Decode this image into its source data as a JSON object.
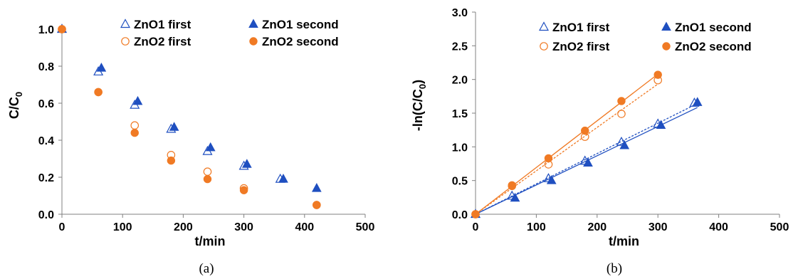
{
  "colors": {
    "blue": "#1f4fc0",
    "orange": "#f07a24",
    "axis": "#808080"
  },
  "chart_data": [
    {
      "type": "scatter",
      "panel_label": "(a)",
      "xlabel": "t/min",
      "ylabel": "C/C",
      "ylabel_sub": "0",
      "xlim": [
        0,
        500
      ],
      "ylim": [
        0,
        1.0
      ],
      "xticks": [
        "0",
        "100",
        "200",
        "300",
        "400",
        "500"
      ],
      "yticks": [
        "0.0",
        "0.2",
        "0.4",
        "0.6",
        "0.8",
        "1.0"
      ],
      "legend": [
        "ZnO1 first",
        "ZnO1 second",
        "ZnO2 first",
        "ZnO2 second"
      ],
      "series": [
        {
          "name": "ZnO1 first",
          "marker": "triangle-open",
          "color": "blue",
          "x": [
            0,
            60,
            120,
            180,
            240,
            300,
            360
          ],
          "y": [
            1.0,
            0.77,
            0.59,
            0.46,
            0.34,
            0.26,
            0.19
          ]
        },
        {
          "name": "ZnO1 second",
          "marker": "triangle-filled",
          "color": "blue",
          "x": [
            0,
            65,
            125,
            185,
            245,
            305,
            365,
            420
          ],
          "y": [
            1.0,
            0.79,
            0.61,
            0.47,
            0.36,
            0.27,
            0.19,
            0.14
          ]
        },
        {
          "name": "ZnO2 first",
          "marker": "circle-open",
          "color": "orange",
          "x": [
            0,
            60,
            120,
            180,
            240,
            300,
            420
          ],
          "y": [
            1.0,
            0.66,
            0.48,
            0.32,
            0.23,
            0.14,
            0.05
          ]
        },
        {
          "name": "ZnO2 second",
          "marker": "circle-filled",
          "color": "orange",
          "x": [
            0,
            60,
            120,
            180,
            240,
            300,
            420
          ],
          "y": [
            1.0,
            0.66,
            0.44,
            0.29,
            0.19,
            0.13,
            0.05
          ]
        }
      ]
    },
    {
      "type": "scatter",
      "panel_label": "(b)",
      "xlabel": "t/min",
      "ylabel": "-ln(C/C",
      "ylabel_sub": "0",
      "ylabel_end": ")",
      "xlim": [
        0,
        500
      ],
      "ylim": [
        0,
        3.0
      ],
      "xticks": [
        "0",
        "100",
        "200",
        "300",
        "400",
        "500"
      ],
      "yticks": [
        "0.0",
        "0.5",
        "1.0",
        "1.5",
        "2.0",
        "2.5",
        "3.0"
      ],
      "legend": [
        "ZnO1 first",
        "ZnO1 second",
        "ZnO2 first",
        "ZnO2 second"
      ],
      "series": [
        {
          "name": "ZnO1 first",
          "marker": "triangle-open",
          "color": "blue",
          "fit": "dashed",
          "x": [
            0,
            60,
            120,
            180,
            240,
            300,
            360
          ],
          "y": [
            0,
            0.27,
            0.53,
            0.79,
            1.07,
            1.34,
            1.65
          ]
        },
        {
          "name": "ZnO1 second",
          "marker": "triangle-filled",
          "color": "blue",
          "fit": "solid",
          "x": [
            0,
            65,
            125,
            185,
            245,
            305,
            365
          ],
          "y": [
            0,
            0.24,
            0.5,
            0.76,
            1.02,
            1.32,
            1.66
          ]
        },
        {
          "name": "ZnO2 first",
          "marker": "circle-open",
          "color": "orange",
          "fit": "dashed",
          "x": [
            0,
            60,
            120,
            180,
            240,
            300
          ],
          "y": [
            0,
            0.42,
            0.74,
            1.15,
            1.49,
            1.99
          ]
        },
        {
          "name": "ZnO2 second",
          "marker": "circle-filled",
          "color": "orange",
          "fit": "solid",
          "x": [
            0,
            60,
            120,
            180,
            240,
            300
          ],
          "y": [
            0,
            0.43,
            0.83,
            1.24,
            1.68,
            2.07
          ]
        }
      ]
    }
  ]
}
